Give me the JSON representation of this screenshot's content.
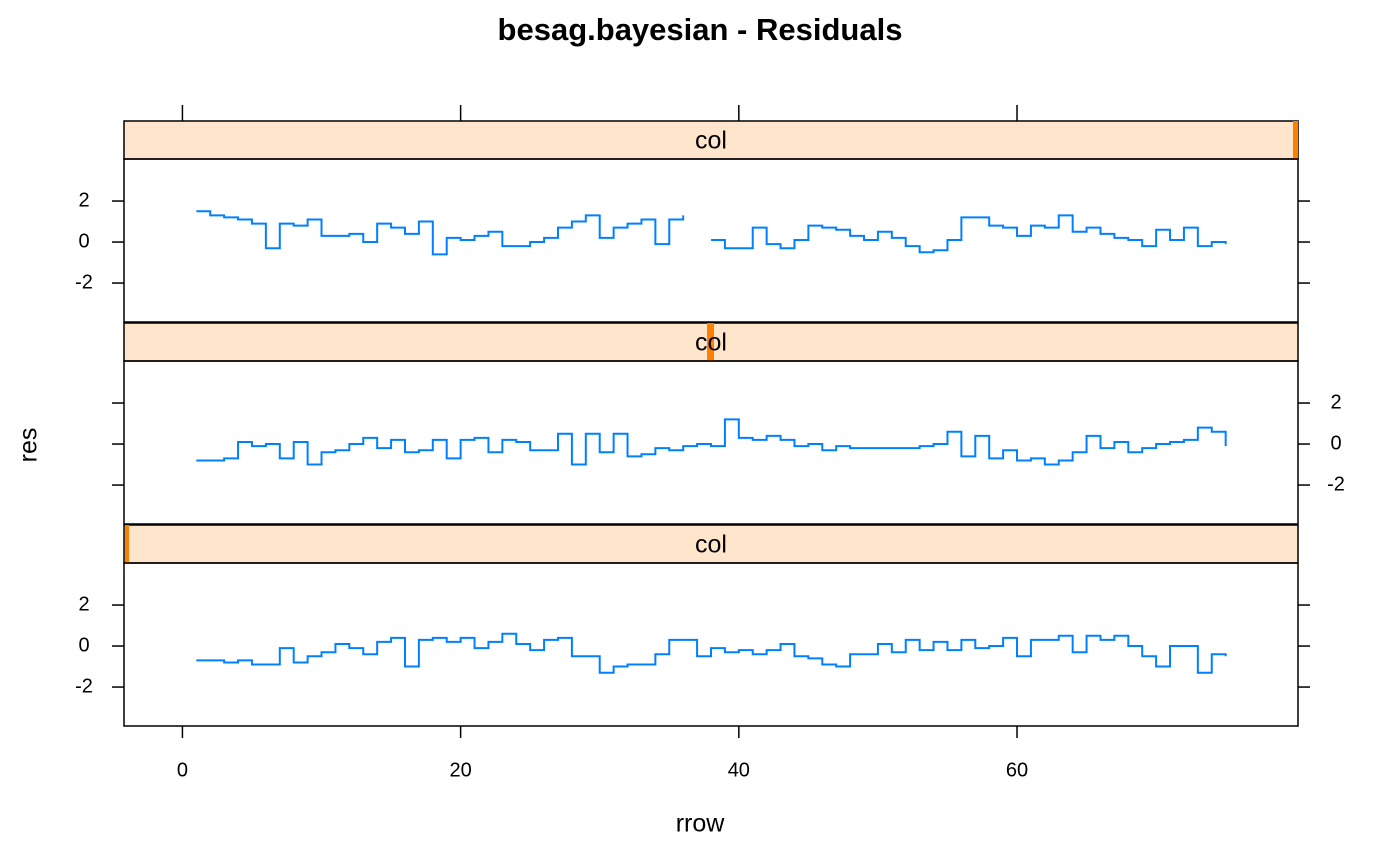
{
  "chart_data": {
    "type": "line",
    "step": true,
    "title": "besag.bayesian - Residuals",
    "xlabel": "rrow",
    "ylabel": "res",
    "color": "#0080ff",
    "x": [
      1,
      2,
      3,
      4,
      5,
      6,
      7,
      8,
      9,
      10,
      11,
      12,
      13,
      14,
      15,
      16,
      17,
      18,
      19,
      20,
      21,
      22,
      23,
      24,
      25,
      26,
      27,
      28,
      29,
      30,
      31,
      32,
      33,
      34,
      35,
      36,
      37,
      38,
      39,
      40,
      41,
      42,
      43,
      44,
      45,
      46,
      47,
      48,
      49,
      50,
      51,
      52,
      53,
      54,
      55,
      56,
      57,
      58,
      59,
      60,
      61,
      62,
      63,
      64,
      65,
      66,
      67,
      68,
      69,
      70,
      71,
      72,
      73,
      74,
      75
    ],
    "xlim": [
      -4.2,
      80.2
    ],
    "xticks": [
      0,
      20,
      40,
      60
    ],
    "ylim": [
      -3.9,
      4.05
    ],
    "yticks": [
      -2,
      0,
      2
    ],
    "panels": [
      {
        "strip": "col",
        "values": [
          1.5,
          1.3,
          1.2,
          1.1,
          0.9,
          -0.3,
          0.9,
          0.8,
          1.1,
          0.3,
          0.3,
          0.4,
          0,
          0.9,
          0.7,
          0.4,
          1.0,
          -0.6,
          0.2,
          0.1,
          0.3,
          0.5,
          -0.2,
          -0.2,
          0,
          0.2,
          0.7,
          1.0,
          1.3,
          0.2,
          0.7,
          0.9,
          1.1,
          -0.1,
          1.1,
          1.3,
          null,
          0.1,
          -0.3,
          -0.3,
          0.7,
          -0.1,
          -0.3,
          0.1,
          0.8,
          0.7,
          0.6,
          0.3,
          0.1,
          0.5,
          0.2,
          -0.2,
          -0.5,
          -0.4,
          0.1,
          1.2,
          1.2,
          0.8,
          0.7,
          0.3,
          0.8,
          0.7,
          1.3,
          0.5,
          0.7,
          0.4,
          0.2,
          0.1,
          -0.2,
          0.6,
          0.1,
          0.7,
          -0.2,
          0,
          -0.1
        ]
      },
      {
        "strip": "col",
        "values": [
          -0.8,
          -0.8,
          -0.7,
          0.1,
          -0.1,
          0,
          -0.7,
          0.1,
          -1.0,
          -0.4,
          -0.3,
          0,
          0.3,
          -0.2,
          0.2,
          -0.4,
          -0.3,
          0.2,
          -0.7,
          0.2,
          0.3,
          -0.4,
          0.2,
          0.1,
          -0.3,
          -0.3,
          0.5,
          -1.0,
          0.5,
          -0.4,
          0.5,
          -0.6,
          -0.5,
          -0.2,
          -0.3,
          -0.1,
          0,
          -0.1,
          1.2,
          0.3,
          0.2,
          0.4,
          0.2,
          -0.1,
          0,
          -0.3,
          -0.1,
          -0.2,
          -0.2,
          -0.2,
          -0.2,
          -0.2,
          -0.1,
          0,
          0.6,
          -0.6,
          0.4,
          -0.7,
          -0.3,
          -0.8,
          -0.7,
          -1.0,
          -0.8,
          -0.4,
          0.4,
          -0.2,
          0.1,
          -0.4,
          -0.2,
          0,
          0.1,
          0.2,
          0.8,
          0.6,
          -0.1
        ]
      },
      {
        "strip": "col",
        "values": [
          -0.7,
          -0.7,
          -0.8,
          -0.7,
          -0.9,
          -0.9,
          -0.1,
          -0.8,
          -0.5,
          -0.3,
          0.1,
          -0.1,
          -0.4,
          0.2,
          0.4,
          -1.0,
          0.3,
          0.4,
          0.2,
          0.4,
          -0.1,
          0.2,
          0.6,
          0.1,
          -0.2,
          0.3,
          0.4,
          -0.5,
          -0.5,
          -1.3,
          -1.0,
          -0.9,
          -0.9,
          -0.4,
          0.3,
          0.3,
          -0.5,
          -0.1,
          -0.3,
          -0.2,
          -0.4,
          -0.2,
          0.1,
          -0.5,
          -0.6,
          -0.9,
          -1.0,
          -0.4,
          -0.4,
          0.1,
          -0.3,
          0.3,
          -0.2,
          0.2,
          -0.2,
          0.3,
          -0.1,
          0,
          0.4,
          -0.5,
          0.3,
          0.3,
          0.5,
          -0.3,
          0.5,
          0.3,
          0.5,
          0,
          -0.5,
          -1.0,
          0,
          0,
          -1.3,
          -0.4,
          -0.5
        ]
      }
    ]
  }
}
